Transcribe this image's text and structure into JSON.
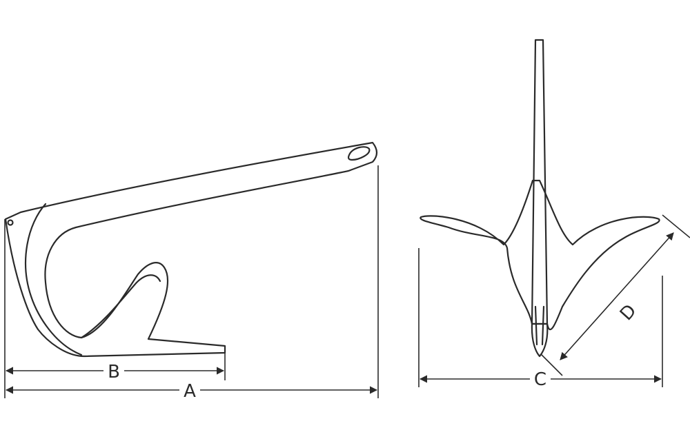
{
  "diagram": {
    "labels": {
      "A": "A",
      "B": "B",
      "C": "C",
      "D": "D"
    },
    "colors": {
      "line": "#2a2a2a",
      "background": "#ffffff"
    }
  }
}
